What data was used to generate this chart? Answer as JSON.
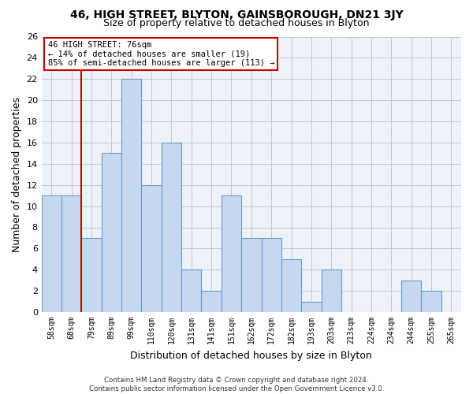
{
  "title1": "46, HIGH STREET, BLYTON, GAINSBOROUGH, DN21 3JY",
  "title2": "Size of property relative to detached houses in Blyton",
  "xlabel": "Distribution of detached houses by size in Blyton",
  "ylabel": "Number of detached properties",
  "footnote": "Contains HM Land Registry data © Crown copyright and database right 2024.\nContains public sector information licensed under the Open Government Licence v3.0.",
  "categories": [
    "58sqm",
    "68sqm",
    "79sqm",
    "89sqm",
    "99sqm",
    "110sqm",
    "120sqm",
    "131sqm",
    "141sqm",
    "151sqm",
    "162sqm",
    "172sqm",
    "182sqm",
    "193sqm",
    "203sqm",
    "213sqm",
    "224sqm",
    "234sqm",
    "244sqm",
    "255sqm",
    "265sqm"
  ],
  "values": [
    11,
    11,
    7,
    15,
    22,
    12,
    16,
    4,
    2,
    11,
    7,
    7,
    5,
    1,
    4,
    0,
    0,
    0,
    3,
    2,
    0
  ],
  "bar_color": "#c5d8f0",
  "bar_edge_color": "#6699cc",
  "bar_edge_width": 0.8,
  "grid_color": "#c0c8d8",
  "background_color": "#eef2f8",
  "vline_x_index": 1.5,
  "vline_color": "#cc0000",
  "ylim": [
    0,
    26
  ],
  "yticks": [
    0,
    2,
    4,
    6,
    8,
    10,
    12,
    14,
    16,
    18,
    20,
    22,
    24,
    26
  ],
  "annotation_title": "46 HIGH STREET: 76sqm",
  "annotation_line1": "← 14% of detached houses are smaller (19)",
  "annotation_line2": "85% of semi-detached houses are larger (113) →"
}
